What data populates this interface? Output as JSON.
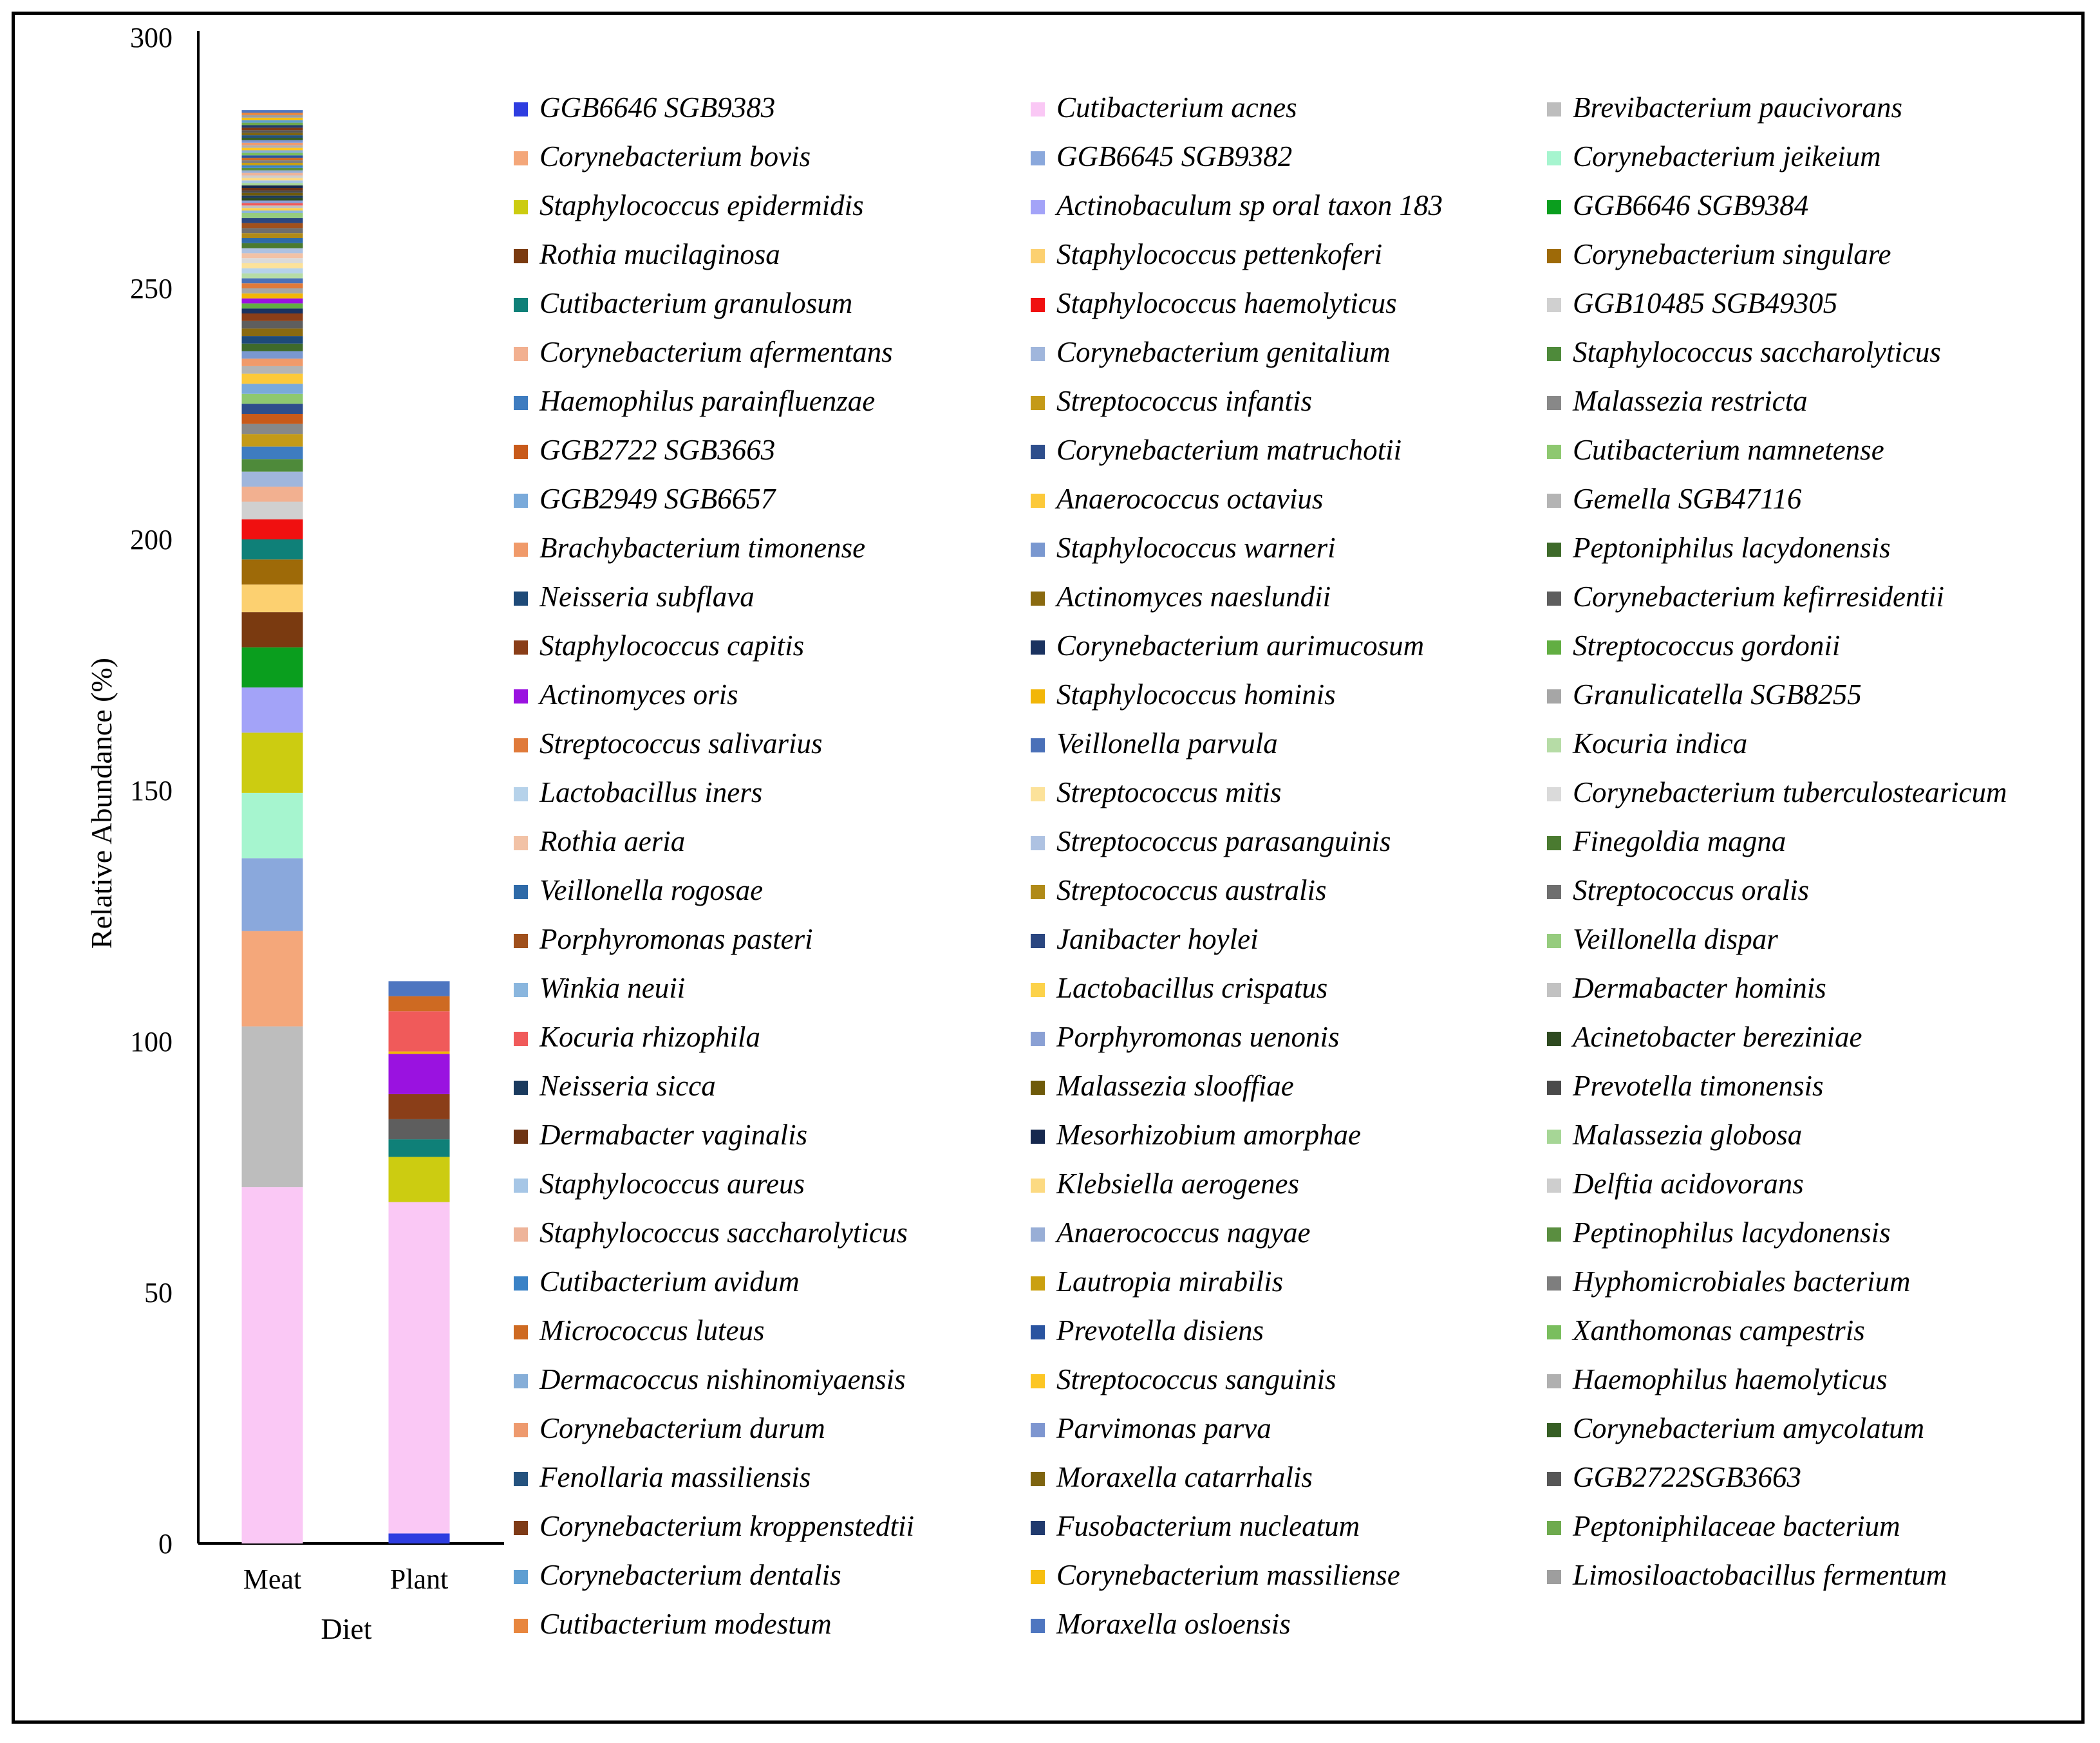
{
  "chart_data": {
    "type": "bar",
    "stacked": true,
    "title": "",
    "xlabel": "Diet",
    "ylabel": "Relative Abundance (%)",
    "ylim": [
      0,
      300
    ],
    "yticks": [
      0,
      50,
      100,
      150,
      200,
      250,
      300
    ],
    "categories": [
      "Meat",
      "Plant"
    ],
    "series": [
      {
        "name": "GGB6646 SGB9383",
        "color": "#2E3DE0",
        "values": [
          0,
          2
        ]
      },
      {
        "name": "Cutibacterium acnes",
        "color": "#FAC8F5",
        "values": [
          71,
          66
        ]
      },
      {
        "name": "Brevibacterium paucivorans",
        "color": "#BDBDBD",
        "values": [
          32,
          0
        ]
      },
      {
        "name": "Corynebacterium bovis",
        "color": "#F4A77A",
        "values": [
          19,
          0
        ]
      },
      {
        "name": "GGB6645 SGB9382",
        "color": "#8AA8DC",
        "values": [
          14.5,
          0
        ]
      },
      {
        "name": "Corynebacterium jeikeium",
        "color": "#A6F5CF",
        "values": [
          13,
          0
        ]
      },
      {
        "name": "Staphylococcus epidermidis",
        "color": "#CCCC11",
        "values": [
          12,
          9
        ]
      },
      {
        "name": "Actinobaculum sp oral taxon 183",
        "color": "#A3A3F8",
        "values": [
          9,
          0
        ]
      },
      {
        "name": "GGB6646 SGB9384",
        "color": "#0A9E1E",
        "values": [
          8,
          0
        ]
      },
      {
        "name": "Rothia mucilaginosa",
        "color": "#7A3A10",
        "values": [
          7,
          0
        ]
      },
      {
        "name": "Staphylococcus pettenkoferi",
        "color": "#FCD070",
        "values": [
          5.5,
          0
        ]
      },
      {
        "name": "Corynebacterium singulare",
        "color": "#9E6A08",
        "values": [
          5,
          0
        ]
      },
      {
        "name": "Cutibacterium granulosum",
        "color": "#0F8078",
        "values": [
          4,
          3.5
        ]
      },
      {
        "name": "Staphylococcus haemolyticus",
        "color": "#F01010",
        "values": [
          4,
          0
        ]
      },
      {
        "name": "GGB10485 SGB49305",
        "color": "#D0D0D0",
        "values": [
          3.5,
          0
        ]
      },
      {
        "name": "Corynebacterium afermentans",
        "color": "#F2B090",
        "values": [
          3,
          0
        ]
      },
      {
        "name": "Corynebacterium genitalium",
        "color": "#A0B6DC",
        "values": [
          3,
          0
        ]
      },
      {
        "name": "Staphylococcus saccharolyticus",
        "color": "#4E8A3A",
        "values": [
          2.5,
          0
        ]
      },
      {
        "name": "Haemophilus parainfluenzae",
        "color": "#3E7CC0",
        "values": [
          2.5,
          0
        ]
      },
      {
        "name": "Streptococcus infantis",
        "color": "#C49A18",
        "values": [
          2.5,
          0
        ]
      },
      {
        "name": "Malassezia restricta",
        "color": "#888888",
        "values": [
          2,
          0
        ]
      },
      {
        "name": "GGB2722 SGB3663",
        "color": "#C85A1A",
        "values": [
          2,
          0
        ]
      },
      {
        "name": "Corynebacterium matruchotii",
        "color": "#2E4E8C",
        "values": [
          2,
          0
        ]
      },
      {
        "name": "Cutibacterium namnetense",
        "color": "#8EC870",
        "values": [
          2,
          0
        ]
      },
      {
        "name": "GGB2949 SGB6657",
        "color": "#7AAADA",
        "values": [
          2,
          0
        ]
      },
      {
        "name": "Anaerococcus octavius",
        "color": "#FCC93A",
        "values": [
          2,
          0
        ]
      },
      {
        "name": "Gemella SGB47116",
        "color": "#B4B4B4",
        "values": [
          1.5,
          0
        ]
      },
      {
        "name": "Brachybacterium timonense",
        "color": "#F09A6A",
        "values": [
          1.5,
          0
        ]
      },
      {
        "name": "Staphylococcus warneri",
        "color": "#7A98D0",
        "values": [
          1.5,
          0
        ]
      },
      {
        "name": "Peptoniphilus lacydonensis",
        "color": "#3E6A2A",
        "values": [
          1.5,
          0
        ]
      },
      {
        "name": "Neisseria subflava",
        "color": "#1E4A78",
        "values": [
          1.5,
          0
        ]
      },
      {
        "name": "Actinomyces naeslundii",
        "color": "#8A6A10",
        "values": [
          1.5,
          0
        ]
      },
      {
        "name": "Corynebacterium kefirresidentii",
        "color": "#5E5E5E",
        "values": [
          1.5,
          4
        ]
      },
      {
        "name": "Staphylococcus capitis",
        "color": "#8A3E18",
        "values": [
          1.5,
          5
        ]
      },
      {
        "name": "Corynebacterium aurimucosum",
        "color": "#1A3260",
        "values": [
          1,
          0
        ]
      },
      {
        "name": "Streptococcus gordonii",
        "color": "#62AE42",
        "values": [
          1,
          0
        ]
      },
      {
        "name": "Actinomyces oris",
        "color": "#9A12E0",
        "values": [
          1,
          8
        ]
      },
      {
        "name": "Staphylococcus hominis",
        "color": "#F2B608",
        "values": [
          1,
          0.5
        ]
      },
      {
        "name": "Granulicatella SGB8255",
        "color": "#A6A6A6",
        "values": [
          1,
          0
        ]
      },
      {
        "name": "Streptococcus salivarius",
        "color": "#E07A3A",
        "values": [
          1,
          0
        ]
      },
      {
        "name": "Veillonella parvula",
        "color": "#4A70B8",
        "values": [
          1,
          0
        ]
      },
      {
        "name": "Kocuria indica",
        "color": "#B6DCA6",
        "values": [
          1,
          0
        ]
      },
      {
        "name": "Lactobacillus iners",
        "color": "#B6D2EA",
        "values": [
          1,
          0
        ]
      },
      {
        "name": "Streptococcus mitis",
        "color": "#FCE29A",
        "values": [
          1,
          0
        ]
      },
      {
        "name": "Corynebacterium tuberculostearicum",
        "color": "#DADADA",
        "values": [
          1,
          0
        ]
      },
      {
        "name": "Rothia aeria",
        "color": "#F2C2A6",
        "values": [
          1,
          0
        ]
      },
      {
        "name": "Streptococcus parasanguinis",
        "color": "#AEC2E2",
        "values": [
          1,
          0
        ]
      },
      {
        "name": "Finegoldia magna",
        "color": "#4A7A30",
        "values": [
          1,
          0
        ]
      },
      {
        "name": "Veillonella rogosae",
        "color": "#2E6AA8",
        "values": [
          1,
          0
        ]
      },
      {
        "name": "Streptococcus australis",
        "color": "#B08A18",
        "values": [
          1,
          0
        ]
      },
      {
        "name": "Streptococcus oralis",
        "color": "#6E6E6E",
        "values": [
          1,
          0
        ]
      },
      {
        "name": "Porphyromonas pasteri",
        "color": "#A0501C",
        "values": [
          1,
          0
        ]
      },
      {
        "name": "Janibacter hoylei",
        "color": "#2A4680",
        "values": [
          1,
          0
        ]
      },
      {
        "name": "Veillonella dispar",
        "color": "#96CC7E",
        "values": [
          1,
          0
        ]
      },
      {
        "name": "Winkia neuii",
        "color": "#8AB6DE",
        "values": [
          0.5,
          0
        ]
      },
      {
        "name": "Lactobacillus crispatus",
        "color": "#FCD24A",
        "values": [
          0.5,
          0
        ]
      },
      {
        "name": "Dermabacter hominis",
        "color": "#C2C2C2",
        "values": [
          0.5,
          0
        ]
      },
      {
        "name": "Kocuria rhizophila",
        "color": "#F05A5A",
        "values": [
          0.5,
          8
        ]
      },
      {
        "name": "Porphyromonas uenonis",
        "color": "#8AA0D4",
        "values": [
          0.5,
          0
        ]
      },
      {
        "name": "Acinetobacter bereziniae",
        "color": "#2E4A20",
        "values": [
          0.5,
          0
        ]
      },
      {
        "name": "Neisseria sicca",
        "color": "#1A3A5E",
        "values": [
          0.5,
          0
        ]
      },
      {
        "name": "Malassezia slooffiae",
        "color": "#6E5A0A",
        "values": [
          0.5,
          0
        ]
      },
      {
        "name": "Prevotella timonensis",
        "color": "#4A4A4A",
        "values": [
          0.5,
          0
        ]
      },
      {
        "name": "Dermabacter vaginalis",
        "color": "#6E3414",
        "values": [
          0.5,
          0
        ]
      },
      {
        "name": "Mesorhizobium amorphae",
        "color": "#16284E",
        "values": [
          0.5,
          0
        ]
      },
      {
        "name": "Malassezia globosa",
        "color": "#A6D696",
        "values": [
          0.5,
          0
        ]
      },
      {
        "name": "Staphylococcus aureus",
        "color": "#A6C6E6",
        "values": [
          0.5,
          0
        ]
      },
      {
        "name": "Klebsiella aerogenes",
        "color": "#FCDA82",
        "values": [
          0.5,
          0
        ]
      },
      {
        "name": "Delftia acidovorans",
        "color": "#CECECE",
        "values": [
          0.5,
          0
        ]
      },
      {
        "name": "Staphylococcus saccharolyticus",
        "color": "#EEB49A",
        "values": [
          0.5,
          0
        ]
      },
      {
        "name": "Anaerococcus nagyae",
        "color": "#98AED6",
        "values": [
          0.5,
          0
        ]
      },
      {
        "name": "Peptinophilus lacydonensis",
        "color": "#5A8E40",
        "values": [
          0.5,
          0
        ]
      },
      {
        "name": "Cutibacterium avidum",
        "color": "#3A82C6",
        "values": [
          0.5,
          0
        ]
      },
      {
        "name": "Lautropia mirabilis",
        "color": "#CAA010",
        "values": [
          0.5,
          0
        ]
      },
      {
        "name": "Hyphomicrobiales bacterium",
        "color": "#7E7E7E",
        "values": [
          0.5,
          0
        ]
      },
      {
        "name": "Micrococcus luteus",
        "color": "#CE6A22",
        "values": [
          0.5,
          3
        ]
      },
      {
        "name": "Prevotella disiens",
        "color": "#2A54A0",
        "values": [
          0.5,
          0
        ]
      },
      {
        "name": "Xanthomonas campestris",
        "color": "#7ABE5E",
        "values": [
          0.5,
          0
        ]
      },
      {
        "name": "Dermacoccus nishinomiyaensis",
        "color": "#86AED8",
        "values": [
          0.5,
          0
        ]
      },
      {
        "name": "Streptococcus sanguinis",
        "color": "#FCC624",
        "values": [
          0.5,
          0
        ]
      },
      {
        "name": "Haemophilus haemolyticus",
        "color": "#B0B0B0",
        "values": [
          0.5,
          0
        ]
      },
      {
        "name": "Corynebacterium durum",
        "color": "#EE9A6E",
        "values": [
          0.5,
          0
        ]
      },
      {
        "name": "Parvimonas parva",
        "color": "#7E96D0",
        "values": [
          0.5,
          0
        ]
      },
      {
        "name": "Corynebacterium amycolatum",
        "color": "#365E24",
        "values": [
          0.5,
          0
        ]
      },
      {
        "name": "Fenollaria massiliensis",
        "color": "#24527E",
        "values": [
          0.5,
          0
        ]
      },
      {
        "name": "Moraxella catarrhalis",
        "color": "#7E6410",
        "values": [
          0.5,
          0
        ]
      },
      {
        "name": "GGB2722SGB3663",
        "color": "#565656",
        "values": [
          0.5,
          0
        ]
      },
      {
        "name": "Corynebacterium kroppenstedtii",
        "color": "#7E3A16",
        "values": [
          0.5,
          0
        ]
      },
      {
        "name": "Fusobacterium nucleatum",
        "color": "#203A6E",
        "values": [
          0.5,
          0
        ]
      },
      {
        "name": "Peptoniphilaceae bacterium",
        "color": "#6EAA4E",
        "values": [
          0.5,
          0
        ]
      },
      {
        "name": "Corynebacterium dentalis",
        "color": "#5E9ED2",
        "values": [
          0.5,
          0
        ]
      },
      {
        "name": "Corynebacterium massiliense",
        "color": "#F6BE10",
        "values": [
          0.5,
          0
        ]
      },
      {
        "name": "Limosiloactobacillus fermentum",
        "color": "#9E9E9E",
        "values": [
          0.5,
          0
        ]
      },
      {
        "name": "Cutibacterium modestum",
        "color": "#E8863E",
        "values": [
          0.5,
          0
        ]
      },
      {
        "name": "Moraxella osloensis",
        "color": "#4E76C0",
        "values": [
          0.5,
          3
        ]
      }
    ]
  }
}
